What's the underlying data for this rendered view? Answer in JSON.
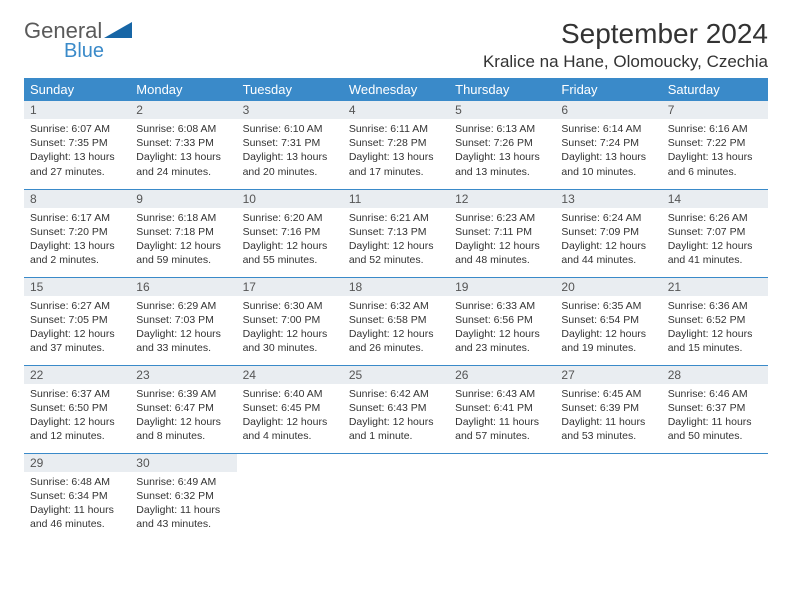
{
  "brand": {
    "general": "General",
    "blue": "Blue"
  },
  "title": "September 2024",
  "location": "Kralice na Hane, Olomoucky, Czechia",
  "colors": {
    "header_bg": "#3a8ac9",
    "header_fg": "#ffffff",
    "daynum_bg": "#e9edf1",
    "row_border": "#3a8ac9",
    "text": "#333333"
  },
  "weekdays": [
    "Sunday",
    "Monday",
    "Tuesday",
    "Wednesday",
    "Thursday",
    "Friday",
    "Saturday"
  ],
  "weeks": [
    [
      {
        "day": "1",
        "sunrise": "Sunrise: 6:07 AM",
        "sunset": "Sunset: 7:35 PM",
        "daylight": "Daylight: 13 hours and 27 minutes."
      },
      {
        "day": "2",
        "sunrise": "Sunrise: 6:08 AM",
        "sunset": "Sunset: 7:33 PM",
        "daylight": "Daylight: 13 hours and 24 minutes."
      },
      {
        "day": "3",
        "sunrise": "Sunrise: 6:10 AM",
        "sunset": "Sunset: 7:31 PM",
        "daylight": "Daylight: 13 hours and 20 minutes."
      },
      {
        "day": "4",
        "sunrise": "Sunrise: 6:11 AM",
        "sunset": "Sunset: 7:28 PM",
        "daylight": "Daylight: 13 hours and 17 minutes."
      },
      {
        "day": "5",
        "sunrise": "Sunrise: 6:13 AM",
        "sunset": "Sunset: 7:26 PM",
        "daylight": "Daylight: 13 hours and 13 minutes."
      },
      {
        "day": "6",
        "sunrise": "Sunrise: 6:14 AM",
        "sunset": "Sunset: 7:24 PM",
        "daylight": "Daylight: 13 hours and 10 minutes."
      },
      {
        "day": "7",
        "sunrise": "Sunrise: 6:16 AM",
        "sunset": "Sunset: 7:22 PM",
        "daylight": "Daylight: 13 hours and 6 minutes."
      }
    ],
    [
      {
        "day": "8",
        "sunrise": "Sunrise: 6:17 AM",
        "sunset": "Sunset: 7:20 PM",
        "daylight": "Daylight: 13 hours and 2 minutes."
      },
      {
        "day": "9",
        "sunrise": "Sunrise: 6:18 AM",
        "sunset": "Sunset: 7:18 PM",
        "daylight": "Daylight: 12 hours and 59 minutes."
      },
      {
        "day": "10",
        "sunrise": "Sunrise: 6:20 AM",
        "sunset": "Sunset: 7:16 PM",
        "daylight": "Daylight: 12 hours and 55 minutes."
      },
      {
        "day": "11",
        "sunrise": "Sunrise: 6:21 AM",
        "sunset": "Sunset: 7:13 PM",
        "daylight": "Daylight: 12 hours and 52 minutes."
      },
      {
        "day": "12",
        "sunrise": "Sunrise: 6:23 AM",
        "sunset": "Sunset: 7:11 PM",
        "daylight": "Daylight: 12 hours and 48 minutes."
      },
      {
        "day": "13",
        "sunrise": "Sunrise: 6:24 AM",
        "sunset": "Sunset: 7:09 PM",
        "daylight": "Daylight: 12 hours and 44 minutes."
      },
      {
        "day": "14",
        "sunrise": "Sunrise: 6:26 AM",
        "sunset": "Sunset: 7:07 PM",
        "daylight": "Daylight: 12 hours and 41 minutes."
      }
    ],
    [
      {
        "day": "15",
        "sunrise": "Sunrise: 6:27 AM",
        "sunset": "Sunset: 7:05 PM",
        "daylight": "Daylight: 12 hours and 37 minutes."
      },
      {
        "day": "16",
        "sunrise": "Sunrise: 6:29 AM",
        "sunset": "Sunset: 7:03 PM",
        "daylight": "Daylight: 12 hours and 33 minutes."
      },
      {
        "day": "17",
        "sunrise": "Sunrise: 6:30 AM",
        "sunset": "Sunset: 7:00 PM",
        "daylight": "Daylight: 12 hours and 30 minutes."
      },
      {
        "day": "18",
        "sunrise": "Sunrise: 6:32 AM",
        "sunset": "Sunset: 6:58 PM",
        "daylight": "Daylight: 12 hours and 26 minutes."
      },
      {
        "day": "19",
        "sunrise": "Sunrise: 6:33 AM",
        "sunset": "Sunset: 6:56 PM",
        "daylight": "Daylight: 12 hours and 23 minutes."
      },
      {
        "day": "20",
        "sunrise": "Sunrise: 6:35 AM",
        "sunset": "Sunset: 6:54 PM",
        "daylight": "Daylight: 12 hours and 19 minutes."
      },
      {
        "day": "21",
        "sunrise": "Sunrise: 6:36 AM",
        "sunset": "Sunset: 6:52 PM",
        "daylight": "Daylight: 12 hours and 15 minutes."
      }
    ],
    [
      {
        "day": "22",
        "sunrise": "Sunrise: 6:37 AM",
        "sunset": "Sunset: 6:50 PM",
        "daylight": "Daylight: 12 hours and 12 minutes."
      },
      {
        "day": "23",
        "sunrise": "Sunrise: 6:39 AM",
        "sunset": "Sunset: 6:47 PM",
        "daylight": "Daylight: 12 hours and 8 minutes."
      },
      {
        "day": "24",
        "sunrise": "Sunrise: 6:40 AM",
        "sunset": "Sunset: 6:45 PM",
        "daylight": "Daylight: 12 hours and 4 minutes."
      },
      {
        "day": "25",
        "sunrise": "Sunrise: 6:42 AM",
        "sunset": "Sunset: 6:43 PM",
        "daylight": "Daylight: 12 hours and 1 minute."
      },
      {
        "day": "26",
        "sunrise": "Sunrise: 6:43 AM",
        "sunset": "Sunset: 6:41 PM",
        "daylight": "Daylight: 11 hours and 57 minutes."
      },
      {
        "day": "27",
        "sunrise": "Sunrise: 6:45 AM",
        "sunset": "Sunset: 6:39 PM",
        "daylight": "Daylight: 11 hours and 53 minutes."
      },
      {
        "day": "28",
        "sunrise": "Sunrise: 6:46 AM",
        "sunset": "Sunset: 6:37 PM",
        "daylight": "Daylight: 11 hours and 50 minutes."
      }
    ],
    [
      {
        "day": "29",
        "sunrise": "Sunrise: 6:48 AM",
        "sunset": "Sunset: 6:34 PM",
        "daylight": "Daylight: 11 hours and 46 minutes."
      },
      {
        "day": "30",
        "sunrise": "Sunrise: 6:49 AM",
        "sunset": "Sunset: 6:32 PM",
        "daylight": "Daylight: 11 hours and 43 minutes."
      },
      null,
      null,
      null,
      null,
      null
    ]
  ]
}
